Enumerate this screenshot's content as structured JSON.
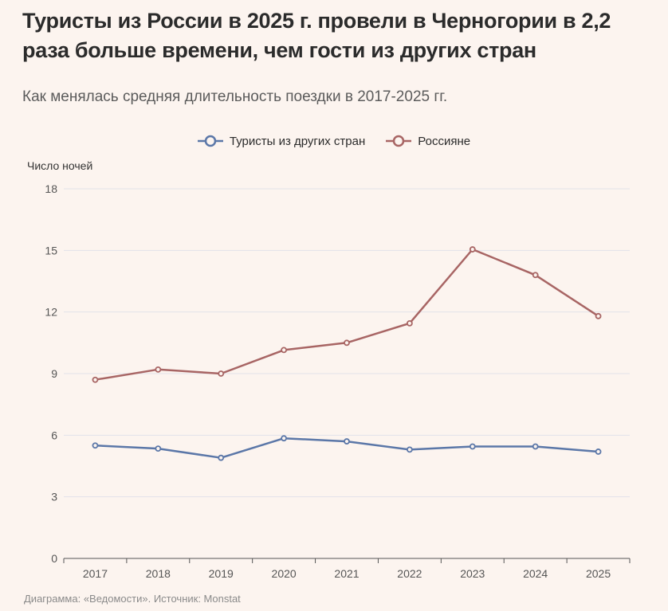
{
  "title": "Туристы из России в 2025 г. провели в Черногории в 2,2 раза больше времени, чем гости из других стран",
  "subtitle": "Как менялась средняя длительность поездки в 2017-2025 гг.",
  "footer": "Диаграмма: «Ведомости». Источник: Monstat",
  "chart_data": {
    "type": "line",
    "title": "Туристы из России в 2025 г. провели в Черногории в 2,2 раза больше времени, чем гости из других стран",
    "subtitle": "Как менялась средняя длительность поездки в 2017-2025 гг.",
    "xlabel": "",
    "ylabel": "Число ночей",
    "categories": [
      "2017",
      "2018",
      "2019",
      "2020",
      "2021",
      "2022",
      "2023",
      "2024",
      "2025"
    ],
    "ylim": [
      0,
      18
    ],
    "yticks": [
      0,
      3,
      6,
      9,
      12,
      15,
      18
    ],
    "grid": true,
    "legend_position": "top-center",
    "series": [
      {
        "name": "Туристы из других стран",
        "color": "#5b77a8",
        "values": [
          5.5,
          5.35,
          4.9,
          5.85,
          5.7,
          5.3,
          5.45,
          5.45,
          5.2
        ]
      },
      {
        "name": "Россияне",
        "color": "#a86564",
        "values": [
          8.7,
          9.2,
          9.0,
          10.15,
          10.5,
          11.45,
          15.05,
          13.8,
          11.8
        ]
      }
    ]
  }
}
